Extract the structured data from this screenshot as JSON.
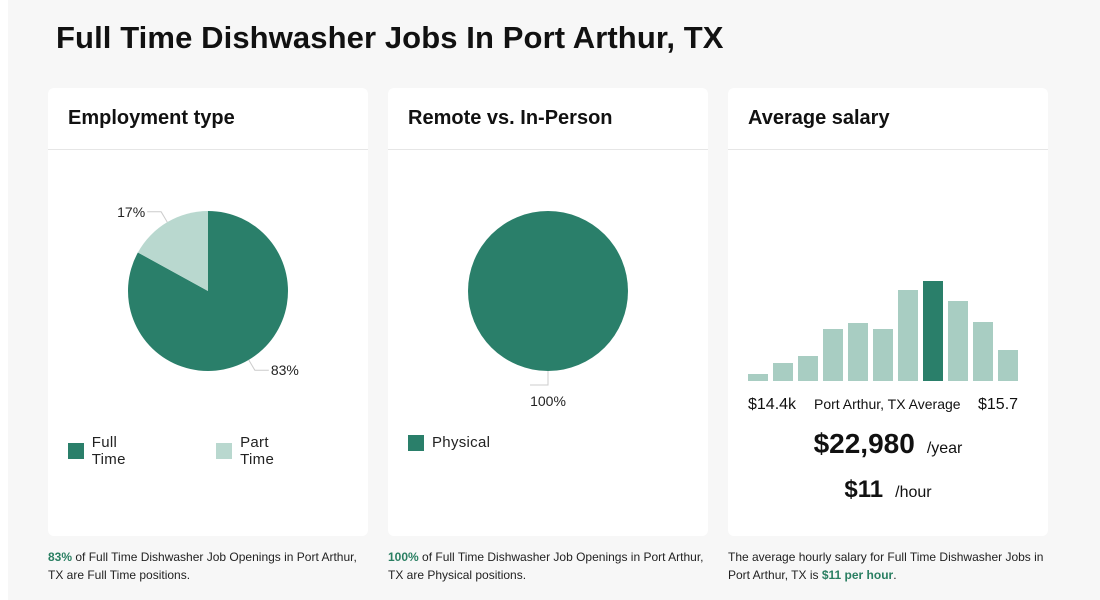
{
  "page": {
    "title": "Full Time Dishwasher Jobs In Port Arthur, TX"
  },
  "colors": {
    "primary": "#2a7f6a",
    "secondary": "#b9d8cf",
    "highlight_text": "#2a7f62"
  },
  "employment": {
    "title": "Employment type",
    "legend": [
      {
        "label": "Full Time",
        "color": "#2a7f6a"
      },
      {
        "label": "Part Time",
        "color": "#b9d8cf"
      }
    ],
    "caption": {
      "highlight": "83%",
      "text": " of Full Time Dishwasher Job Openings in Port Arthur, TX are Full Time positions."
    }
  },
  "remote": {
    "title": "Remote vs. In-Person",
    "legend": [
      {
        "label": "Physical",
        "color": "#2a7f6a"
      }
    ],
    "caption": {
      "highlight": "100%",
      "text": " of Full Time Dishwasher Job Openings in Port Arthur, TX are Physical positions."
    }
  },
  "salary": {
    "title": "Average salary",
    "min_label": "$14.4k",
    "mid_label": "Port Arthur, TX Average",
    "max_label": "$15.7",
    "yearly": "$22,980",
    "yearly_unit": "/year",
    "hourly": "$11",
    "hourly_unit": "/hour",
    "caption": {
      "text": "The average hourly salary for Full Time Dishwasher Jobs in Port Arthur, TX is ",
      "highlight": "$11 per hour",
      "end": "."
    }
  },
  "chart_data": [
    {
      "type": "pie",
      "title": "Employment type",
      "labels": [
        "Full Time",
        "Part Time"
      ],
      "values": [
        83,
        17
      ],
      "value_labels": [
        "83%",
        "17%"
      ],
      "colors": [
        "#2a7f6a",
        "#b9d8cf"
      ]
    },
    {
      "type": "pie",
      "title": "Remote vs. In-Person",
      "labels": [
        "Physical"
      ],
      "values": [
        100
      ],
      "value_labels": [
        "100%"
      ],
      "colors": [
        "#2a7f6a"
      ]
    },
    {
      "type": "bar",
      "title": "Average salary",
      "values": [
        7,
        18,
        25,
        52,
        58,
        52,
        91,
        100,
        80,
        59,
        31
      ],
      "highlight_index": 7,
      "colors": [
        "#a8cdc2",
        "#2a7f6a"
      ],
      "ylim": [
        0,
        100
      ]
    }
  ]
}
